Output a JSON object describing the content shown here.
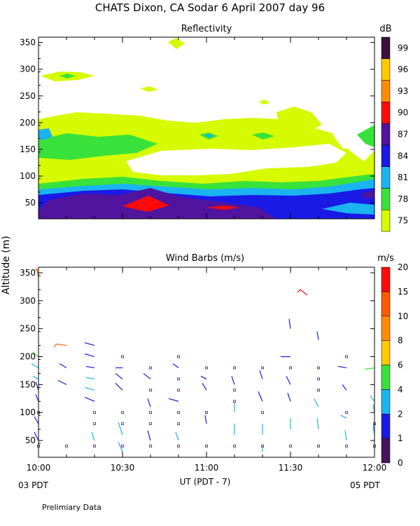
{
  "header": {
    "title": "CHATS Dixon, CA  Sodar    6 April 2007   day  96"
  },
  "footer": {
    "note": "Prelimiary Data",
    "start_label": "03 PDT",
    "end_label": "05 PDT"
  },
  "colors": {
    "reflectivity_scale": [
      "#d6fa00",
      "#38e23a",
      "#1ab4f0",
      "#1a1ae6",
      "#50149e",
      "#ff0a0a",
      "#ff8c00",
      "#ffc800",
      "#3c0f3c"
    ],
    "wind_scale": [
      "#46145a",
      "#1a1ae6",
      "#1ab4f0",
      "#38e23a",
      "#ffc800",
      "#ff8c00",
      "#ff5a00",
      "#ff0a0a"
    ]
  },
  "chart_data": [
    {
      "type": "heatmap",
      "title": "Reflectivity",
      "xlabel": "UT  (PDT - 7)",
      "ylabel": "Altitude  (m)",
      "x_ticks": [
        "10:00",
        "10:30",
        "11:00",
        "11:30",
        "12:00"
      ],
      "y_ticks": [
        "50",
        "100",
        "150",
        "200",
        "250",
        "300",
        "350"
      ],
      "ylim": [
        20,
        360
      ],
      "xlim_minutes": [
        0,
        120
      ],
      "colorbar": {
        "unit": "dB",
        "levels": [
          "75",
          "78",
          "81",
          "84",
          "87",
          "90",
          "93",
          "96",
          "99"
        ]
      }
    },
    {
      "type": "scatter",
      "title": "Wind Barbs (m/s)",
      "xlabel": "UT  (PDT - 7)",
      "ylabel": "Altitude  (m)",
      "x_ticks": [
        "10:00",
        "10:30",
        "11:00",
        "11:30",
        "12:00"
      ],
      "y_ticks": [
        "50",
        "100",
        "150",
        "200",
        "250",
        "300",
        "350"
      ],
      "ylim": [
        20,
        360
      ],
      "xlim_minutes": [
        0,
        120
      ],
      "colorbar": {
        "unit": "m/s",
        "levels": [
          "0",
          "1",
          "2",
          "4",
          "6",
          "8",
          "10",
          "15",
          "20"
        ]
      },
      "barbs": [
        {
          "t": 0,
          "alt": 340,
          "dx": -2,
          "dy": -14,
          "c": 6
        },
        {
          "t": 10,
          "alt": 220,
          "dx": -14,
          "dy": -2,
          "c": 6
        },
        {
          "t": 0,
          "alt": 200,
          "dx": -8,
          "dy": -6,
          "c": 3
        },
        {
          "t": 0,
          "alt": 180,
          "dx": -10,
          "dy": -6,
          "c": 2
        },
        {
          "t": 0,
          "alt": 160,
          "dx": -8,
          "dy": -4,
          "c": 2
        },
        {
          "t": 0,
          "alt": 140,
          "dx": -4,
          "dy": -12,
          "c": 1
        },
        {
          "t": 0,
          "alt": 120,
          "dx": -4,
          "dy": -10,
          "c": 1
        },
        {
          "t": 0,
          "alt": 80,
          "dx": -6,
          "dy": -10,
          "c": 1
        },
        {
          "t": 0,
          "alt": 50,
          "dx": -6,
          "dy": -12,
          "c": 1
        },
        {
          "t": 20,
          "alt": 220,
          "dx": -14,
          "dy": -4,
          "c": 1
        },
        {
          "t": 20,
          "alt": 200,
          "dx": -14,
          "dy": -4,
          "c": 1
        },
        {
          "t": 20,
          "alt": 180,
          "dx": -12,
          "dy": -2,
          "c": 1
        },
        {
          "t": 20,
          "alt": 160,
          "dx": -12,
          "dy": -2,
          "c": 2
        },
        {
          "t": 20,
          "alt": 140,
          "dx": -14,
          "dy": -4,
          "c": 2
        },
        {
          "t": 20,
          "alt": 120,
          "dx": -14,
          "dy": -6,
          "c": 1
        },
        {
          "t": 20,
          "alt": 50,
          "dx": -4,
          "dy": -12,
          "c": 2
        },
        {
          "t": 10,
          "alt": 180,
          "dx": -10,
          "dy": -6,
          "c": 1
        },
        {
          "t": 10,
          "alt": 150,
          "dx": -12,
          "dy": -6,
          "c": 1
        },
        {
          "t": 30,
          "alt": 180,
          "dx": -10,
          "dy": 0,
          "c": 1
        },
        {
          "t": 30,
          "alt": 160,
          "dx": -10,
          "dy": -8,
          "c": 1
        },
        {
          "t": 30,
          "alt": 140,
          "dx": -10,
          "dy": -10,
          "c": 1
        },
        {
          "t": 30,
          "alt": 60,
          "dx": -6,
          "dy": -18,
          "c": 2
        },
        {
          "t": 30,
          "alt": 30,
          "dx": -6,
          "dy": -14,
          "c": 2
        },
        {
          "t": 40,
          "alt": 160,
          "dx": -10,
          "dy": -8,
          "c": 1
        },
        {
          "t": 40,
          "alt": 110,
          "dx": -4,
          "dy": -12,
          "c": 1
        },
        {
          "t": 40,
          "alt": 50,
          "dx": -4,
          "dy": -14,
          "c": 1
        },
        {
          "t": 50,
          "alt": 180,
          "dx": -8,
          "dy": -6,
          "c": 1
        },
        {
          "t": 50,
          "alt": 120,
          "dx": -14,
          "dy": -4,
          "c": 1
        },
        {
          "t": 50,
          "alt": 50,
          "dx": -4,
          "dy": -12,
          "c": 2
        },
        {
          "t": 60,
          "alt": 160,
          "dx": -8,
          "dy": -4,
          "c": 1
        },
        {
          "t": 60,
          "alt": 140,
          "dx": -6,
          "dy": -10,
          "c": 1
        },
        {
          "t": 60,
          "alt": 80,
          "dx": -2,
          "dy": -12,
          "c": 1
        },
        {
          "t": 70,
          "alt": 150,
          "dx": -4,
          "dy": -12,
          "c": 1
        },
        {
          "t": 70,
          "alt": 100,
          "dx": 0,
          "dy": -14,
          "c": 2
        },
        {
          "t": 70,
          "alt": 60,
          "dx": 0,
          "dy": -16,
          "c": 2
        },
        {
          "t": 80,
          "alt": 160,
          "dx": -4,
          "dy": -12,
          "c": 1
        },
        {
          "t": 80,
          "alt": 120,
          "dx": -6,
          "dy": -14,
          "c": 1
        },
        {
          "t": 80,
          "alt": 60,
          "dx": 0,
          "dy": -16,
          "c": 2
        },
        {
          "t": 80,
          "alt": 30,
          "dx": 0,
          "dy": -8,
          "c": 2
        },
        {
          "t": 90,
          "alt": 250,
          "dx": -2,
          "dy": -14,
          "c": 1
        },
        {
          "t": 90,
          "alt": 200,
          "dx": -14,
          "dy": 0,
          "c": 1
        },
        {
          "t": 90,
          "alt": 150,
          "dx": -6,
          "dy": -12,
          "c": 1
        },
        {
          "t": 90,
          "alt": 120,
          "dx": -4,
          "dy": -12,
          "c": 1
        },
        {
          "t": 90,
          "alt": 70,
          "dx": 0,
          "dy": -16,
          "c": 2
        },
        {
          "t": 100,
          "alt": 230,
          "dx": -2,
          "dy": -12,
          "c": 1
        },
        {
          "t": 100,
          "alt": 110,
          "dx": -6,
          "dy": -12,
          "c": 2
        },
        {
          "t": 100,
          "alt": 70,
          "dx": -2,
          "dy": -16,
          "c": 2
        },
        {
          "t": 110,
          "alt": 180,
          "dx": -12,
          "dy": -2,
          "c": 1
        },
        {
          "t": 110,
          "alt": 140,
          "dx": -6,
          "dy": -8,
          "c": 1
        },
        {
          "t": 110,
          "alt": 90,
          "dx": -8,
          "dy": -4,
          "c": 2
        },
        {
          "t": 110,
          "alt": 50,
          "dx": -2,
          "dy": -14,
          "c": 2
        },
        {
          "t": 96,
          "alt": 310,
          "dx": -10,
          "dy": -8,
          "c": 7
        },
        {
          "t": 120,
          "alt": 180,
          "dx": -14,
          "dy": 2,
          "c": 3
        },
        {
          "t": 120,
          "alt": 120,
          "dx": -6,
          "dy": -8,
          "c": 2
        },
        {
          "t": 120,
          "alt": 100,
          "dx": -2,
          "dy": -12,
          "c": 2
        },
        {
          "t": 120,
          "alt": 60,
          "dx": -2,
          "dy": -14,
          "c": 2
        }
      ],
      "calm_points": [
        {
          "t": 0,
          "alt": 100
        },
        {
          "t": 0,
          "alt": 40
        },
        {
          "t": 10,
          "alt": 40
        },
        {
          "t": 20,
          "alt": 100
        },
        {
          "t": 20,
          "alt": 80
        },
        {
          "t": 20,
          "alt": 40
        },
        {
          "t": 30,
          "alt": 200
        },
        {
          "t": 30,
          "alt": 100
        },
        {
          "t": 30,
          "alt": 80
        },
        {
          "t": 30,
          "alt": 40
        },
        {
          "t": 40,
          "alt": 180
        },
        {
          "t": 40,
          "alt": 140
        },
        {
          "t": 40,
          "alt": 100
        },
        {
          "t": 40,
          "alt": 80
        },
        {
          "t": 40,
          "alt": 40
        },
        {
          "t": 50,
          "alt": 200
        },
        {
          "t": 50,
          "alt": 160
        },
        {
          "t": 50,
          "alt": 140
        },
        {
          "t": 50,
          "alt": 100
        },
        {
          "t": 50,
          "alt": 80
        },
        {
          "t": 50,
          "alt": 40
        },
        {
          "t": 60,
          "alt": 180
        },
        {
          "t": 60,
          "alt": 100
        },
        {
          "t": 60,
          "alt": 40
        },
        {
          "t": 70,
          "alt": 180
        },
        {
          "t": 70,
          "alt": 140
        },
        {
          "t": 70,
          "alt": 120
        },
        {
          "t": 70,
          "alt": 40
        },
        {
          "t": 80,
          "alt": 180
        },
        {
          "t": 80,
          "alt": 100
        },
        {
          "t": 80,
          "alt": 40
        },
        {
          "t": 90,
          "alt": 180
        },
        {
          "t": 90,
          "alt": 40
        },
        {
          "t": 100,
          "alt": 180
        },
        {
          "t": 100,
          "alt": 160
        },
        {
          "t": 100,
          "alt": 140
        },
        {
          "t": 100,
          "alt": 40
        },
        {
          "t": 110,
          "alt": 200
        },
        {
          "t": 110,
          "alt": 100
        },
        {
          "t": 110,
          "alt": 40
        },
        {
          "t": 120,
          "alt": 80
        },
        {
          "t": 120,
          "alt": 40
        }
      ]
    }
  ]
}
